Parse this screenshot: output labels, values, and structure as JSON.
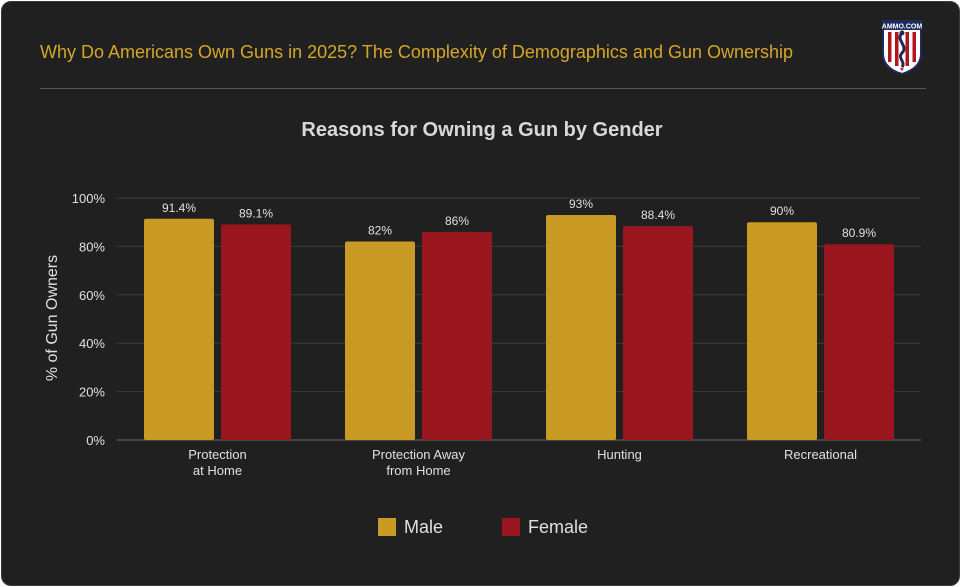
{
  "header": {
    "title": "Why Do Americans Own Guns in 2025? The Complexity of Demographics and Gun Ownership",
    "logo_text": "AMMO.COM"
  },
  "colors": {
    "background": "#202020",
    "accent": "#d4a62a",
    "male": "#c99b25",
    "female": "#9a161e",
    "text": "#e0e0e0",
    "grid": "#3d3d3d"
  },
  "chart_data": {
    "type": "bar",
    "title": "Reasons for Owning a Gun by Gender",
    "xlabel": "",
    "ylabel": "% of Gun Owners",
    "ylim": [
      0,
      100
    ],
    "yticks": [
      "0%",
      "20%",
      "40%",
      "60%",
      "80%",
      "100%"
    ],
    "categories": [
      [
        "Protection",
        "at Home"
      ],
      [
        "Protection Away",
        "from Home"
      ],
      [
        "Hunting"
      ],
      [
        "Recreational"
      ]
    ],
    "series": [
      {
        "name": "Male",
        "values": [
          91.4,
          82,
          93,
          90
        ],
        "labels": [
          "91.4%",
          "82%",
          "93%",
          "90%"
        ]
      },
      {
        "name": "Female",
        "values": [
          89.1,
          86,
          88.4,
          80.9
        ],
        "labels": [
          "89.1%",
          "86%",
          "88.4%",
          "80.9%"
        ]
      }
    ],
    "grid": true,
    "legend": "bottom"
  }
}
